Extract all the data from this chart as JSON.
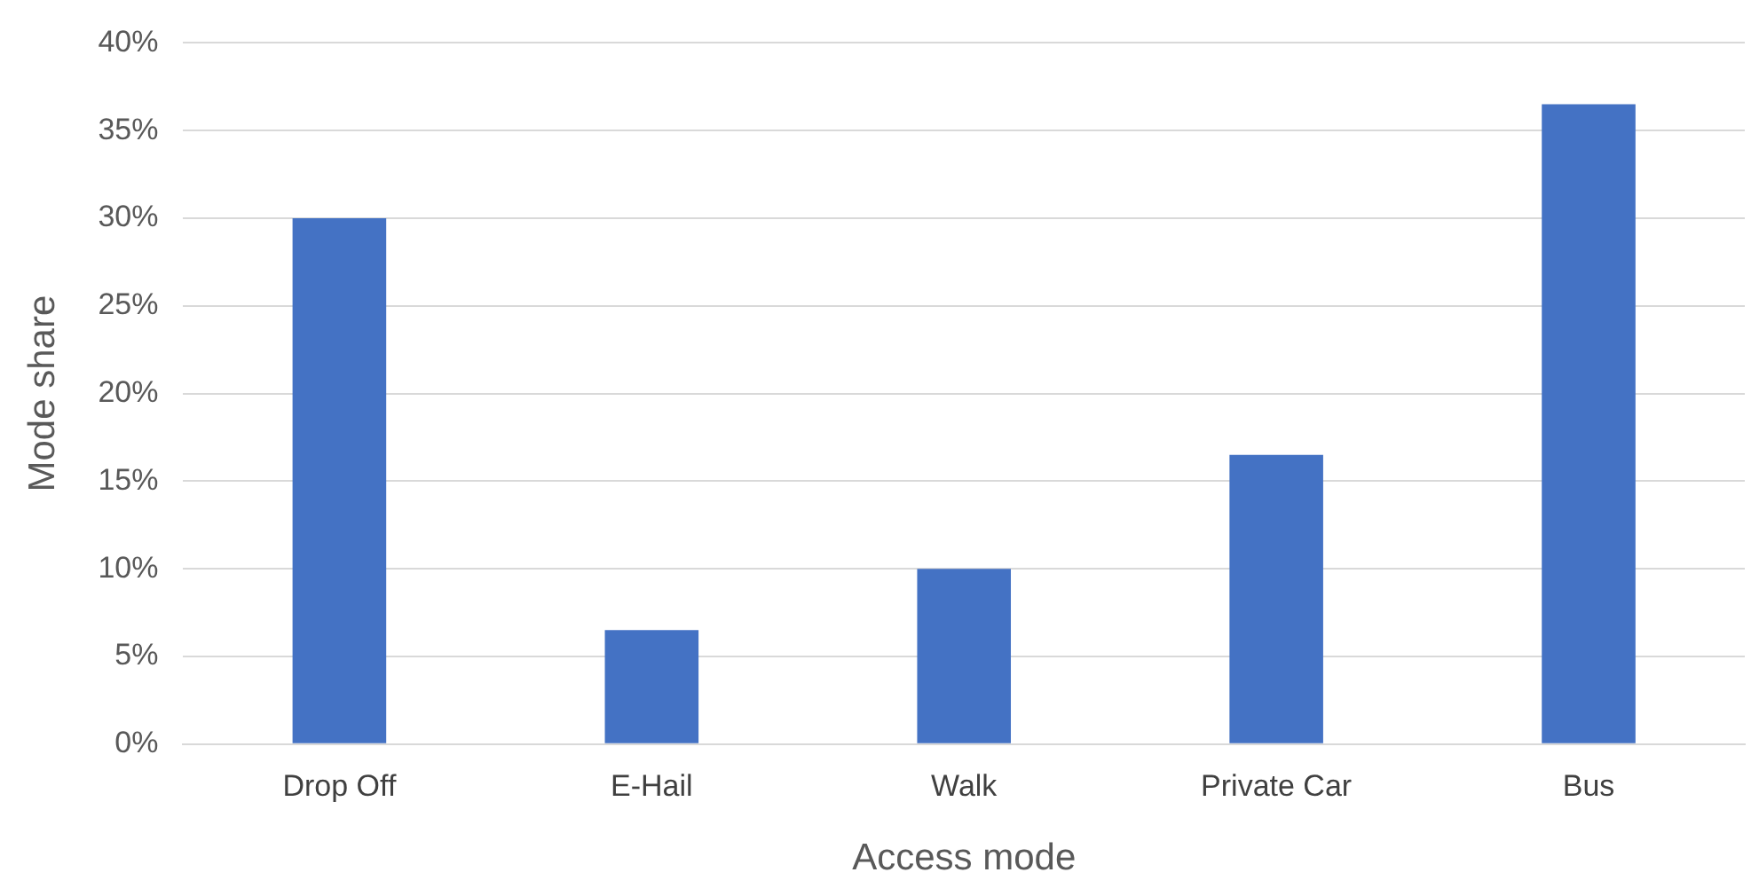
{
  "chart_data": {
    "type": "bar",
    "xlabel": "Access mode",
    "ylabel": "Mode share",
    "categories": [
      "Drop Off",
      "E-Hail",
      "Walk",
      "Private Car",
      "Bus"
    ],
    "values": [
      30,
      6.5,
      10,
      16.5,
      36.5
    ],
    "color": "#4472c4",
    "ylim": [
      0,
      40
    ],
    "yticks": [
      {
        "value": 0,
        "label": "0%"
      },
      {
        "value": 5,
        "label": "5%"
      },
      {
        "value": 10,
        "label": "10%"
      },
      {
        "value": 15,
        "label": "15%"
      },
      {
        "value": 20,
        "label": "20%"
      },
      {
        "value": 25,
        "label": "25%"
      },
      {
        "value": 30,
        "label": "30%"
      },
      {
        "value": 35,
        "label": "35%"
      },
      {
        "value": 40,
        "label": "40%"
      }
    ],
    "grid": "y",
    "legend": false
  }
}
